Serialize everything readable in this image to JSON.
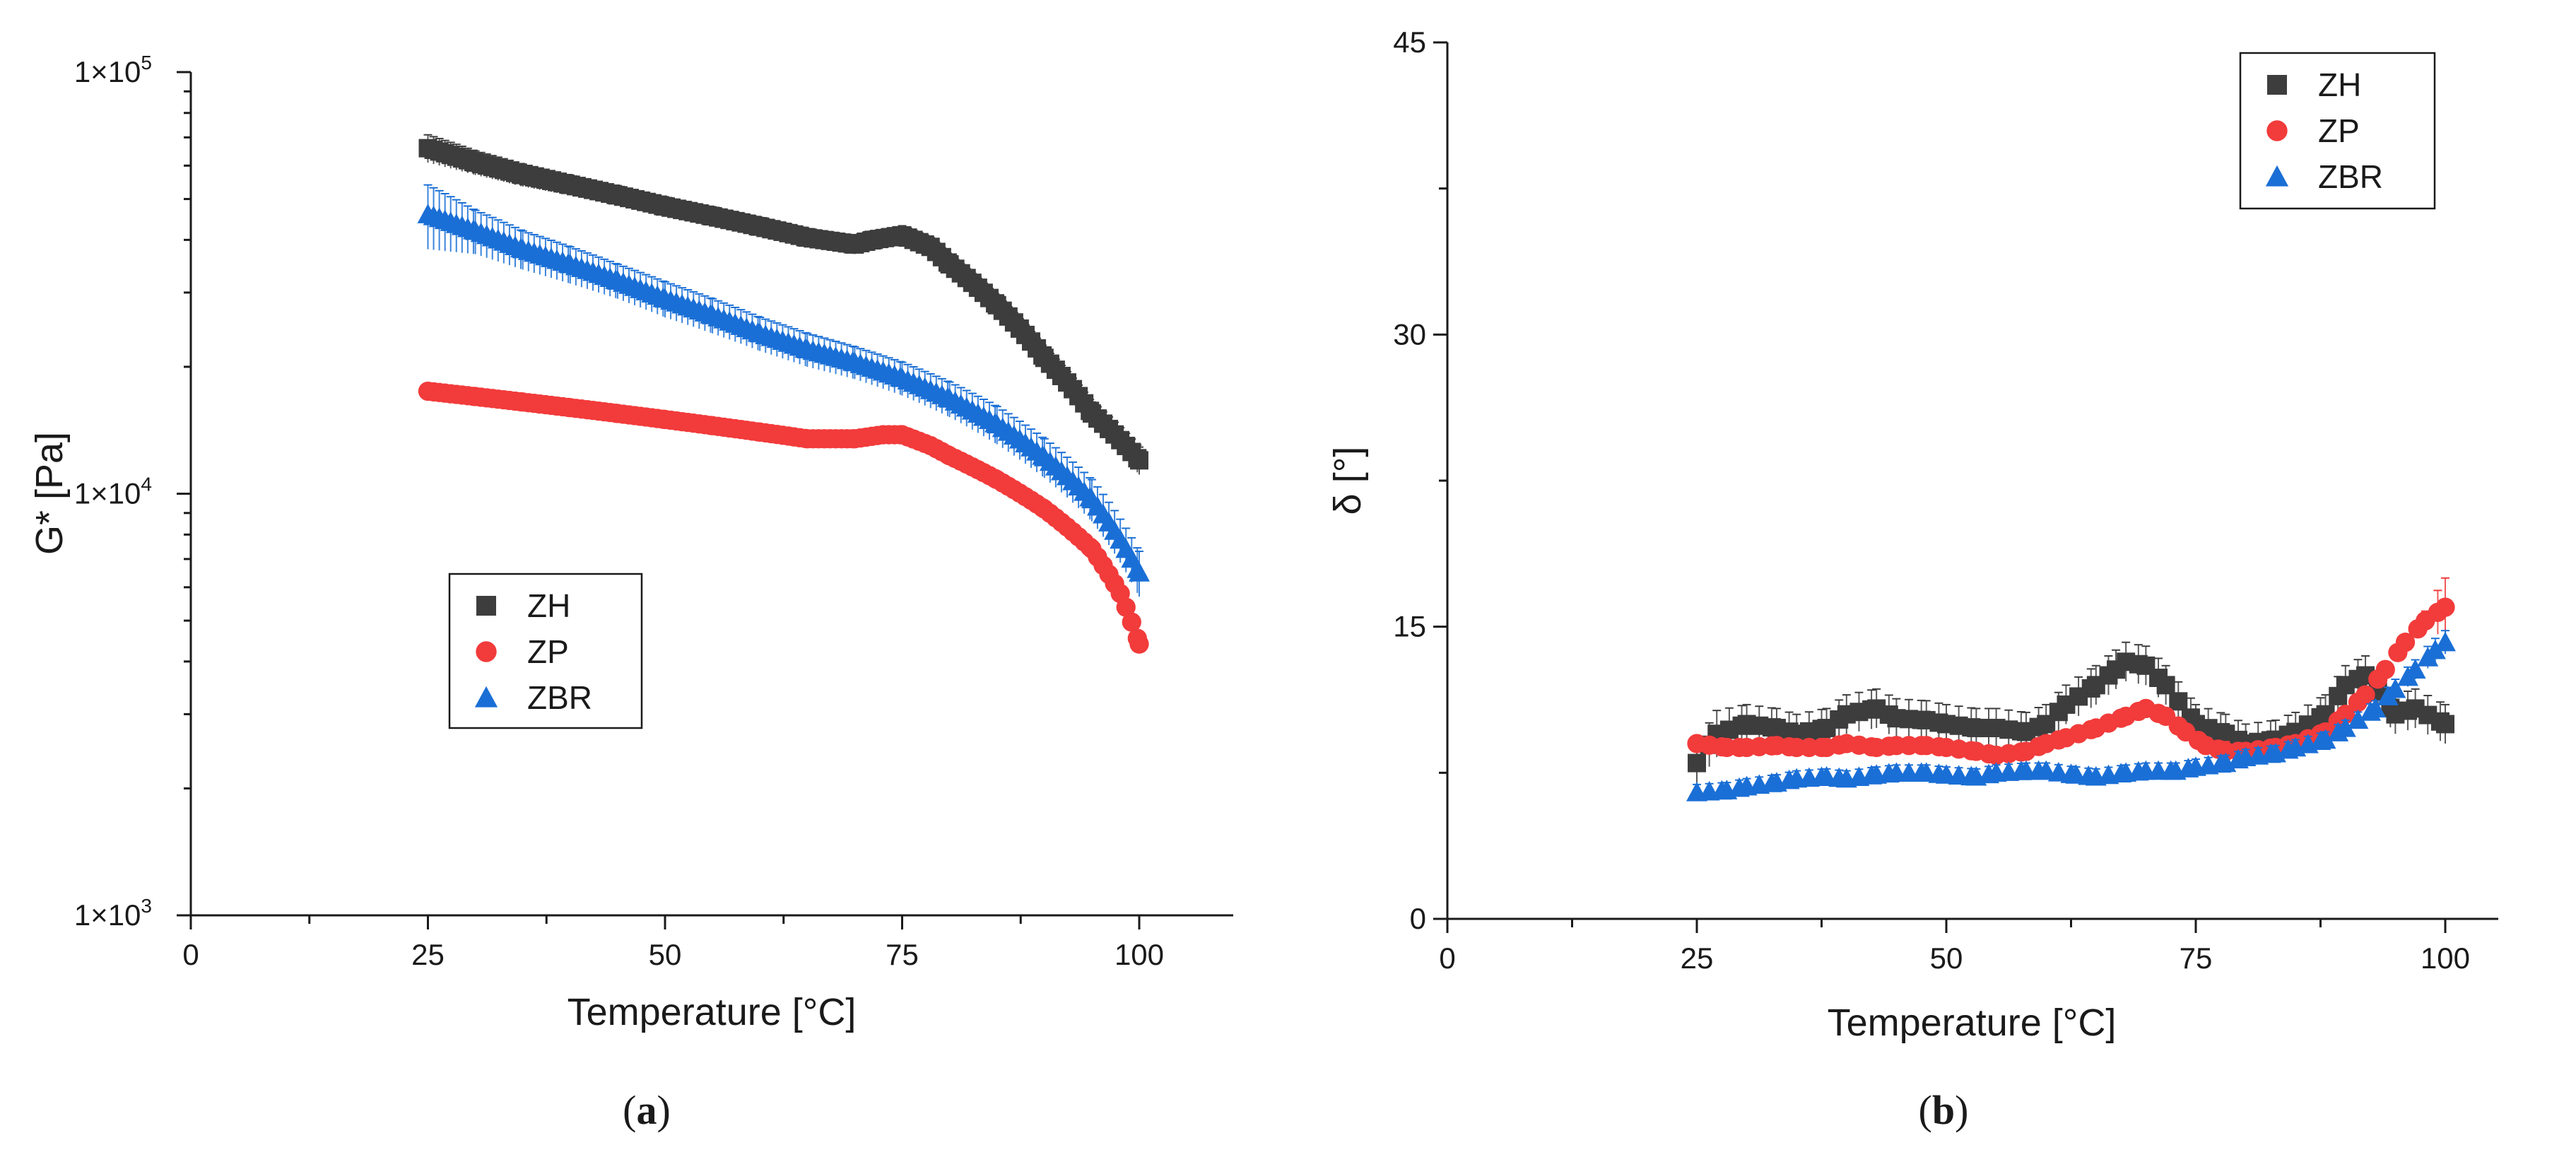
{
  "figure": {
    "panel_a_label": "a",
    "panel_b_label": "b"
  },
  "chart_data": [
    {
      "type": "scatter",
      "panel": "a",
      "title": "",
      "xlabel": "Temperature [°C]",
      "ylabel": "G* [Pa]",
      "xlim": [
        0,
        110
      ],
      "ylim": [
        1000,
        100000
      ],
      "yscale": "log",
      "xticks": [
        0,
        25,
        50,
        75,
        100
      ],
      "yticks": [
        {
          "value": 1000,
          "mantissa": "1×10",
          "exponent": "3"
        },
        {
          "value": 10000,
          "mantissa": "1×10",
          "exponent": "4"
        },
        {
          "value": 100000,
          "mantissa": "1×10",
          "exponent": "5"
        }
      ],
      "legend_position": "center-left",
      "series": [
        {
          "name": "ZH",
          "marker": "square",
          "color": "#3d3d3d",
          "x": [
            25,
            30,
            35,
            40,
            45,
            50,
            55,
            60,
            65,
            70,
            72,
            75,
            78,
            80,
            85,
            90,
            95,
            100
          ],
          "values": [
            66000,
            61000,
            57000,
            54000,
            51000,
            48000,
            45500,
            43000,
            40500,
            39000,
            40000,
            41000,
            38500,
            35000,
            28000,
            21000,
            15500,
            12000
          ],
          "error": [
            5000,
            4000,
            3500,
            3000,
            2800,
            2600,
            2400,
            2200,
            2000,
            2000,
            2000,
            2200,
            2000,
            1800,
            1500,
            1200,
            1000,
            900
          ]
        },
        {
          "name": "ZP",
          "marker": "circle",
          "color": "#f23b3b",
          "x": [
            25,
            30,
            35,
            40,
            45,
            50,
            55,
            60,
            65,
            70,
            73,
            75,
            78,
            80,
            85,
            90,
            95,
            98,
            100
          ],
          "values": [
            17500,
            17000,
            16500,
            16000,
            15500,
            15000,
            14500,
            14000,
            13500,
            13500,
            13800,
            13800,
            13000,
            12300,
            10800,
            9200,
            7400,
            5800,
            4400
          ],
          "error": [
            400,
            400,
            400,
            350,
            350,
            350,
            300,
            300,
            300,
            300,
            300,
            300,
            300,
            300,
            250,
            250,
            200,
            200,
            200
          ]
        },
        {
          "name": "ZBR",
          "marker": "triangle",
          "color": "#1a6fd6",
          "x": [
            25,
            30,
            35,
            40,
            45,
            50,
            55,
            60,
            65,
            70,
            75,
            80,
            85,
            90,
            95,
            100
          ],
          "values": [
            46000,
            42000,
            38000,
            35000,
            32000,
            29000,
            26500,
            24000,
            22000,
            20500,
            18800,
            16800,
            14600,
            12200,
            9700,
            6500
          ],
          "error": [
            8000,
            5000,
            4000,
            3500,
            3000,
            2800,
            2500,
            2200,
            2000,
            1800,
            1700,
            1600,
            1500,
            1300,
            1100,
            800
          ]
        }
      ]
    },
    {
      "type": "scatter",
      "panel": "b",
      "title": "",
      "xlabel": "Temperature [°C]",
      "ylabel": "δ [°]",
      "xlim": [
        0,
        110
      ],
      "ylim": [
        0,
        45
      ],
      "yscale": "linear",
      "xticks": [
        0,
        25,
        50,
        75,
        100
      ],
      "yticks": [
        0,
        15,
        30,
        45
      ],
      "legend_position": "top-right",
      "series": [
        {
          "name": "ZH",
          "marker": "square",
          "color": "#3d3d3d",
          "x": [
            25,
            27,
            30,
            33,
            35,
            38,
            40,
            43,
            45,
            48,
            50,
            53,
            55,
            58,
            60,
            62,
            65,
            67,
            68,
            70,
            72,
            75,
            78,
            80,
            83,
            85,
            88,
            90,
            92,
            95,
            97,
            100
          ],
          "values": [
            8.0,
            9.5,
            10.0,
            9.8,
            9.5,
            9.8,
            10.5,
            10.8,
            10.3,
            10.2,
            10.0,
            9.8,
            9.8,
            9.6,
            10.0,
            11.0,
            12.0,
            12.8,
            13.2,
            13.0,
            12.0,
            10.0,
            9.5,
            9.0,
            9.2,
            9.6,
            10.5,
            12.0,
            12.5,
            10.5,
            10.8,
            10.0
          ],
          "error": [
            1.0,
            1.2,
            1.0,
            1.0,
            1.0,
            1.0,
            1.0,
            1.0,
            1.0,
            1.0,
            1.0,
            1.0,
            1.0,
            1.0,
            1.0,
            1.0,
            1.0,
            1.0,
            1.0,
            1.0,
            1.0,
            1.0,
            1.0,
            1.0,
            1.0,
            1.0,
            1.0,
            1.0,
            1.0,
            1.0,
            1.0,
            1.0
          ]
        },
        {
          "name": "ZP",
          "marker": "circle",
          "color": "#f23b3b",
          "x": [
            25,
            28,
            30,
            33,
            35,
            38,
            40,
            43,
            45,
            48,
            50,
            53,
            55,
            58,
            60,
            62,
            65,
            68,
            70,
            72,
            74,
            76,
            78,
            80,
            83,
            85,
            88,
            90,
            92,
            94,
            96,
            98,
            100
          ],
          "values": [
            9.0,
            8.8,
            8.8,
            8.9,
            8.8,
            8.8,
            9.0,
            8.8,
            8.9,
            8.9,
            8.8,
            8.6,
            8.4,
            8.6,
            9.0,
            9.3,
            9.8,
            10.4,
            10.8,
            10.4,
            9.6,
            8.9,
            8.6,
            8.6,
            8.8,
            9.0,
            9.6,
            10.5,
            11.5,
            12.8,
            14.2,
            15.3,
            16.0
          ],
          "error": [
            0.3,
            0.3,
            0.3,
            0.3,
            0.3,
            0.3,
            0.3,
            0.3,
            0.3,
            0.3,
            0.3,
            0.3,
            0.3,
            0.3,
            0.3,
            0.3,
            0.3,
            0.3,
            0.3,
            0.3,
            0.3,
            0.3,
            0.5,
            0.3,
            0.3,
            0.3,
            0.3,
            0.3,
            0.3,
            0.3,
            0.3,
            0.5,
            1.5
          ]
        },
        {
          "name": "ZBR",
          "marker": "triangle",
          "color": "#1a6fd6",
          "x": [
            25,
            28,
            30,
            33,
            35,
            38,
            40,
            43,
            45,
            48,
            50,
            53,
            55,
            58,
            60,
            63,
            65,
            68,
            70,
            73,
            75,
            78,
            80,
            83,
            85,
            88,
            90,
            93,
            95,
            97,
            99,
            100
          ],
          "values": [
            6.5,
            6.6,
            6.8,
            7.0,
            7.2,
            7.3,
            7.2,
            7.4,
            7.5,
            7.5,
            7.4,
            7.3,
            7.5,
            7.6,
            7.6,
            7.4,
            7.3,
            7.5,
            7.6,
            7.6,
            7.8,
            8.0,
            8.3,
            8.5,
            8.8,
            9.2,
            9.8,
            10.8,
            11.8,
            12.8,
            13.8,
            14.2
          ],
          "error": [
            0.4,
            0.4,
            0.4,
            0.4,
            0.4,
            0.4,
            0.4,
            0.4,
            0.4,
            0.4,
            0.4,
            0.4,
            0.4,
            0.4,
            0.4,
            0.4,
            0.4,
            0.4,
            0.4,
            0.4,
            0.4,
            0.4,
            0.4,
            0.4,
            0.4,
            0.4,
            0.4,
            0.4,
            0.5,
            0.5,
            0.6,
            0.6
          ]
        }
      ]
    }
  ]
}
